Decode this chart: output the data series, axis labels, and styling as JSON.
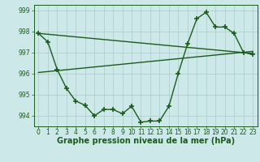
{
  "title": "Graphe pression niveau de la mer (hPa)",
  "x_labels": [
    "0",
    "1",
    "2",
    "3",
    "4",
    "5",
    "6",
    "7",
    "8",
    "9",
    "10",
    "11",
    "12",
    "13",
    "14",
    "15",
    "16",
    "17",
    "18",
    "19",
    "20",
    "21",
    "22",
    "23"
  ],
  "main_series": [
    997.9,
    997.5,
    996.2,
    995.3,
    994.7,
    994.5,
    994.0,
    994.3,
    994.3,
    994.1,
    994.45,
    993.7,
    993.75,
    993.75,
    994.45,
    996.0,
    997.4,
    998.6,
    998.9,
    998.2,
    998.2,
    997.9,
    997.0,
    996.9
  ],
  "line1_x": [
    0,
    23
  ],
  "line1_y": [
    997.9,
    996.95
  ],
  "line2_x": [
    0,
    23
  ],
  "line2_y": [
    996.05,
    997.05
  ],
  "ylim": [
    993.5,
    999.25
  ],
  "xlim": [
    -0.5,
    23.5
  ],
  "bg_color": "#cce8e8",
  "grid_color": "#aacccc",
  "line_color": "#1a5c1a",
  "marker": "+",
  "marker_size": 4,
  "line_width": 1.0,
  "yticks": [
    994,
    995,
    996,
    997,
    998,
    999
  ],
  "title_fontsize": 7,
  "tick_fontsize": 5.5
}
